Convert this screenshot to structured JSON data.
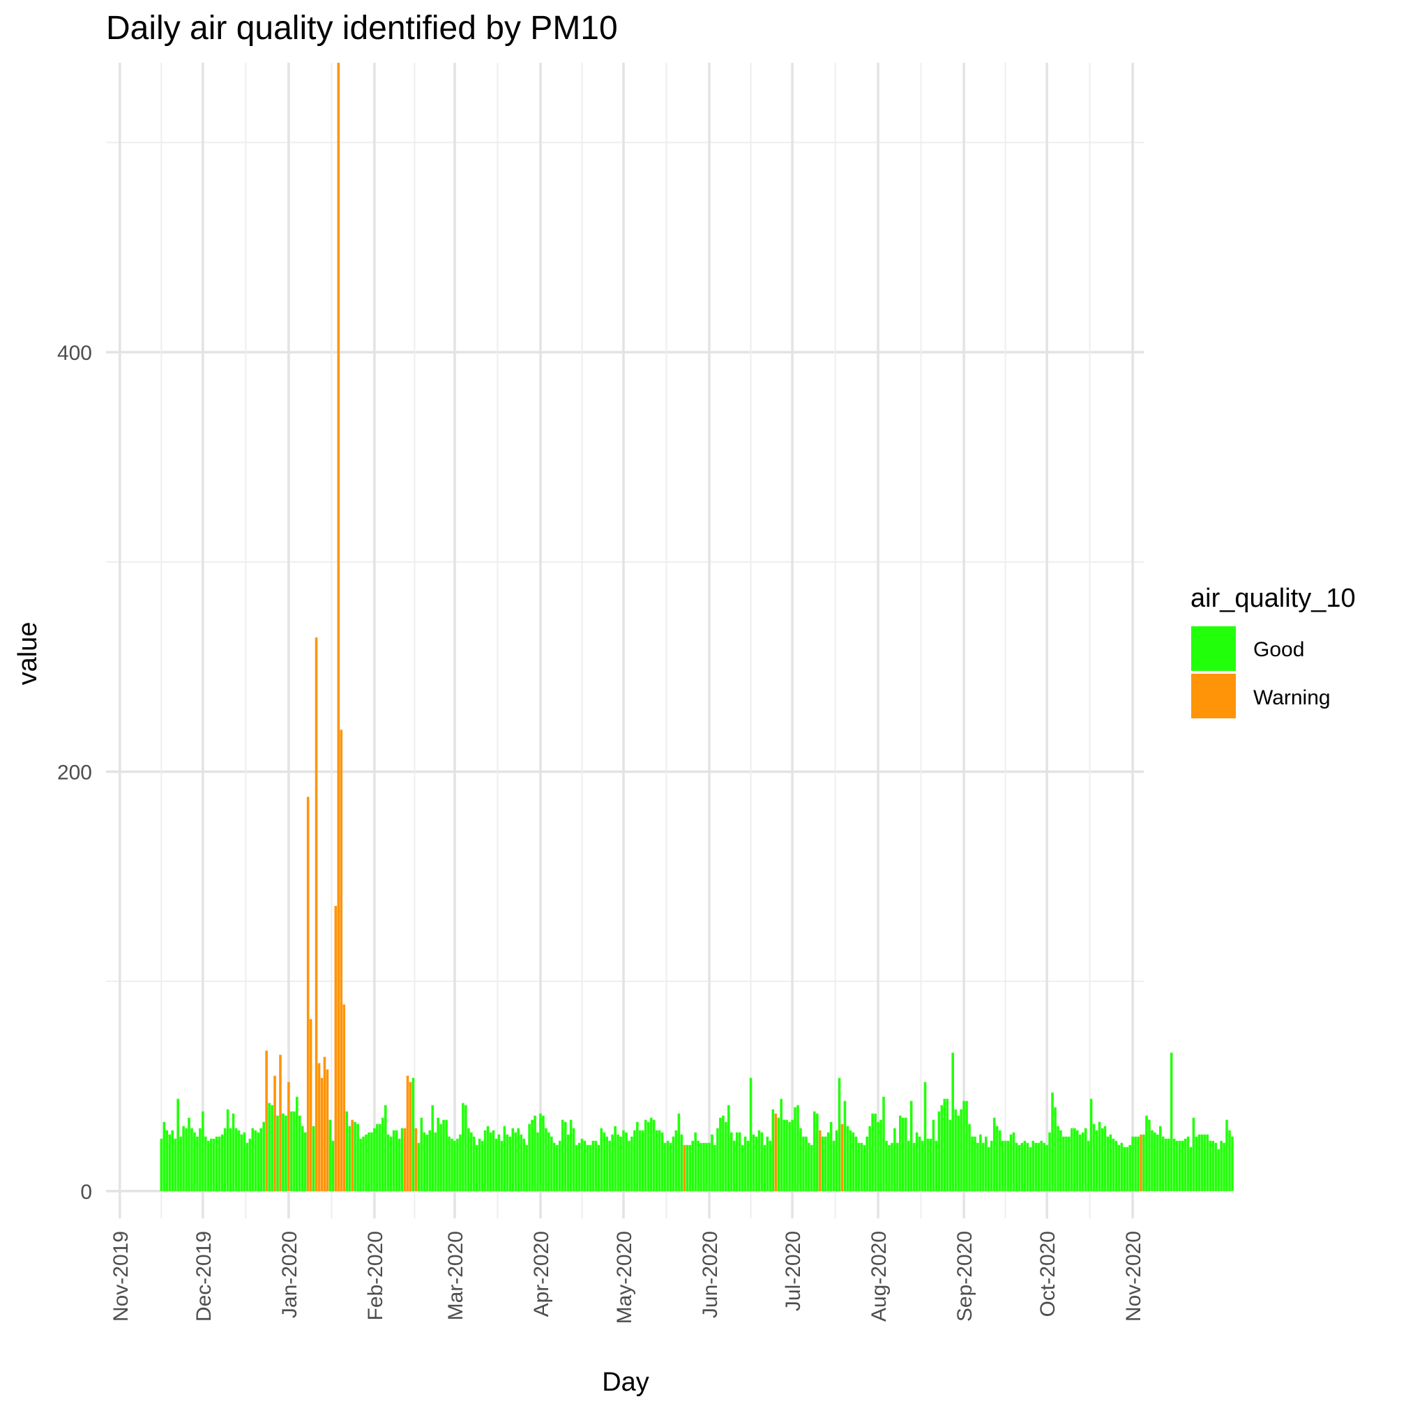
{
  "chart_data": {
    "type": "bar",
    "title": "Daily air quality identified by PM10",
    "xlabel": "Day",
    "ylabel": "value",
    "ylim": [
      -13,
      538
    ],
    "xlim": [
      "2019-10-27",
      "2020-11-05"
    ],
    "y_ticks": [
      0,
      200,
      400
    ],
    "y_minor_ticks": [
      100,
      300,
      500
    ],
    "x_ticks": [
      {
        "date": "2019-11-01",
        "label": "Nov-2019"
      },
      {
        "date": "2019-12-01",
        "label": "Dec-2019"
      },
      {
        "date": "2020-01-01",
        "label": "Jan-2020"
      },
      {
        "date": "2020-02-01",
        "label": "Feb-2020"
      },
      {
        "date": "2020-03-01",
        "label": "Mar-2020"
      },
      {
        "date": "2020-04-01",
        "label": "Apr-2020"
      },
      {
        "date": "2020-05-01",
        "label": "May-2020"
      },
      {
        "date": "2020-06-01",
        "label": "Jun-2020"
      },
      {
        "date": "2020-07-01",
        "label": "Jul-2020"
      },
      {
        "date": "2020-08-01",
        "label": "Aug-2020"
      },
      {
        "date": "2020-09-01",
        "label": "Sep-2020"
      },
      {
        "date": "2020-10-01",
        "label": "Oct-2020"
      },
      {
        "date": "2020-11-01",
        "label": "Nov-2020"
      }
    ],
    "grid": true,
    "legend": {
      "title": "air_quality_10",
      "placement": "right",
      "entries": [
        {
          "label": "Good",
          "color": "#22ff0a"
        },
        {
          "label": "Warning",
          "color": "#ff9408"
        }
      ]
    },
    "start_date": "2019-11-16",
    "categories_from_start_date": "consecutive days",
    "values": [
      25,
      33,
      29,
      27,
      29,
      25,
      44,
      26,
      31,
      30,
      35,
      30,
      28,
      26,
      30,
      38,
      26,
      24,
      25,
      25,
      26,
      26,
      27,
      30,
      39,
      30,
      37,
      30,
      29,
      27,
      28,
      23,
      25,
      30,
      29,
      28,
      30,
      33,
      67,
      42,
      41,
      55,
      36,
      65,
      37,
      36,
      52,
      38,
      38,
      45,
      36,
      31,
      28,
      188,
      82,
      31,
      264,
      61,
      54,
      64,
      58,
      34,
      24,
      136,
      538,
      220,
      89,
      38,
      31,
      34,
      33,
      32,
      25,
      26,
      27,
      28,
      28,
      30,
      32,
      32,
      35,
      41,
      27,
      26,
      29,
      29,
      25,
      30,
      30,
      55,
      52,
      54,
      30,
      23,
      35,
      28,
      27,
      29,
      41,
      28,
      35,
      32,
      34,
      34,
      26,
      25,
      24,
      25,
      27,
      42,
      41,
      30,
      28,
      26,
      22,
      25,
      24,
      29,
      31,
      28,
      29,
      25,
      27,
      24,
      31,
      27,
      26,
      30,
      28,
      30,
      27,
      25,
      22,
      32,
      34,
      36,
      28,
      37,
      36,
      30,
      28,
      26,
      23,
      22,
      24,
      34,
      33,
      27,
      34,
      30,
      22,
      23,
      25,
      24,
      22,
      22,
      24,
      24,
      22,
      30,
      28,
      26,
      24,
      27,
      31,
      27,
      26,
      29,
      28,
      24,
      26,
      29,
      33,
      29,
      29,
      34,
      33,
      35,
      34,
      29,
      29,
      28,
      23,
      24,
      23,
      26,
      29,
      37,
      27,
      22,
      22,
      22,
      24,
      28,
      24,
      23,
      23,
      23,
      23,
      27,
      22,
      30,
      35,
      36,
      33,
      41,
      28,
      24,
      28,
      28,
      22,
      26,
      24,
      54,
      27,
      26,
      29,
      28,
      22,
      26,
      24,
      39,
      37,
      35,
      44,
      34,
      34,
      33,
      34,
      40,
      41,
      30,
      26,
      26,
      23,
      22,
      38,
      37,
      29,
      26,
      26,
      28,
      33,
      24,
      29,
      54,
      32,
      43,
      31,
      29,
      28,
      26,
      23,
      23,
      22,
      26,
      31,
      37,
      37,
      33,
      34,
      45,
      24,
      22,
      23,
      30,
      23,
      36,
      35,
      35,
      24,
      43,
      23,
      28,
      26,
      24,
      52,
      25,
      25,
      34,
      24,
      38,
      41,
      44,
      44,
      34,
      66,
      39,
      36,
      39,
      43,
      43,
      32,
      26,
      26,
      23,
      27,
      23,
      26,
      21,
      24,
      35,
      31,
      29,
      24,
      24,
      24,
      27,
      28,
      23,
      22,
      23,
      24,
      23,
      21,
      24,
      23,
      23,
      24,
      23,
      22,
      28,
      47,
      40,
      31,
      29,
      26,
      26,
      26,
      30,
      30,
      29,
      27,
      28,
      30,
      24,
      44,
      32,
      29,
      33,
      30,
      31,
      26,
      27,
      25,
      24,
      22,
      23,
      21,
      21,
      22,
      26,
      26,
      26,
      27,
      27,
      36,
      34,
      29,
      28,
      27,
      31,
      26,
      25,
      25,
      66,
      25,
      24,
      24,
      24,
      25,
      26,
      21,
      35,
      26,
      27,
      27,
      27,
      27,
      24,
      24,
      23,
      20,
      24,
      23,
      34,
      29,
      26
    ],
    "warning_indices": [
      38,
      41,
      43,
      46,
      53,
      54,
      56,
      57,
      58,
      59,
      60,
      63,
      64,
      65,
      66,
      69,
      88,
      89,
      90,
      92,
      189,
      222,
      238,
      246,
      354
    ],
    "series": [
      {
        "name": "Good",
        "color": "#22ff0a"
      },
      {
        "name": "Warning",
        "color": "#ff9408"
      }
    ]
  }
}
